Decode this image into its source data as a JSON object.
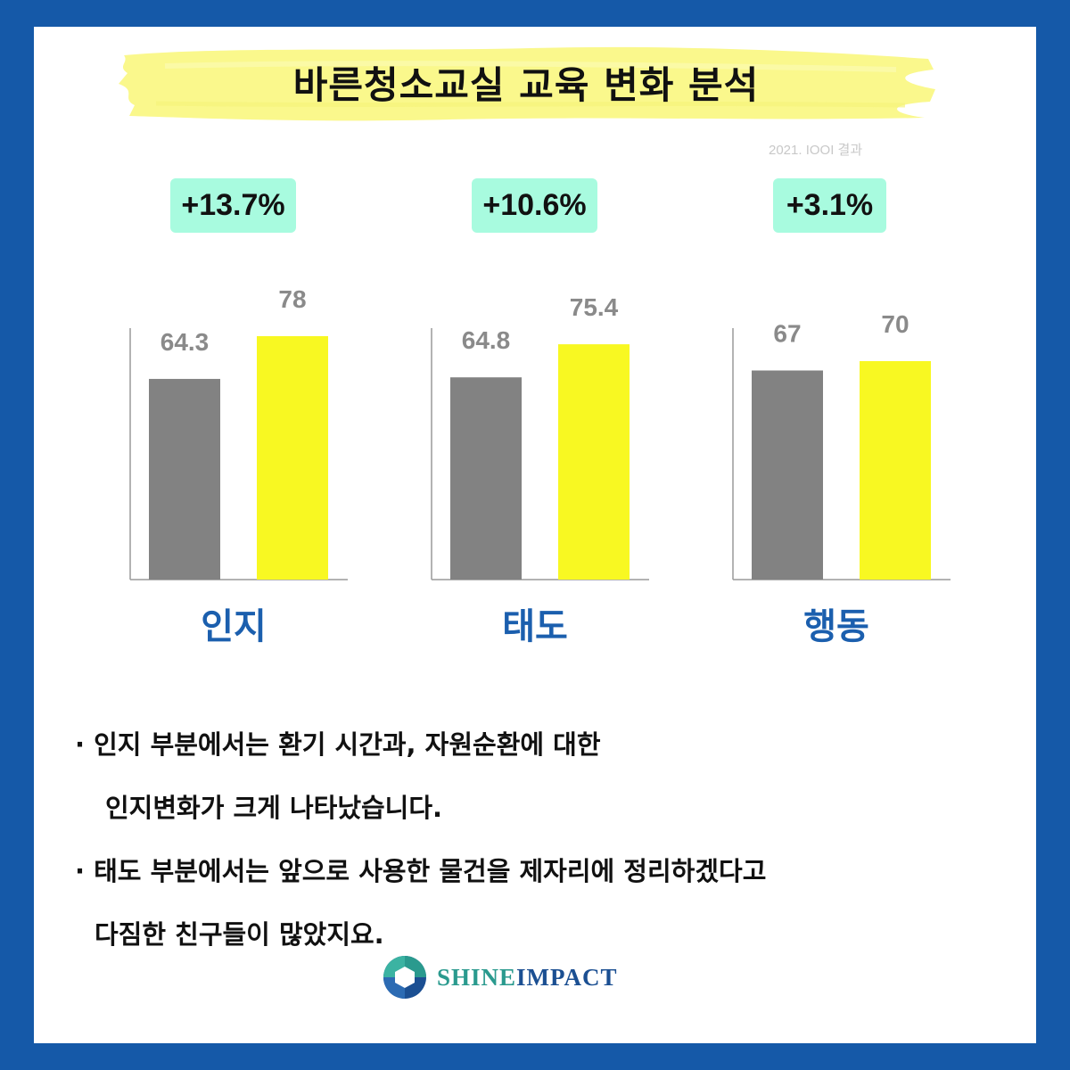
{
  "title": "바른청소교실 교육 변화 분석",
  "subtitle": "2021. IOOI 결과",
  "chart_data": {
    "type": "bar",
    "charts": [
      {
        "category": "인지",
        "badge": "+13.7%",
        "before": 64.3,
        "after": 78,
        "before_label": "64.3",
        "after_label": "78"
      },
      {
        "category": "태도",
        "badge": "+10.6%",
        "before": 64.8,
        "after": 75.4,
        "before_label": "64.8",
        "after_label": "75.4"
      },
      {
        "category": "행동",
        "badge": "+3.1%",
        "before": 67,
        "after": 70,
        "before_label": "67",
        "after_label": "70"
      }
    ],
    "colors": {
      "before": "#828282",
      "after": "#f8f822",
      "value_label": "#8a8a8a",
      "axis": "#9a9a9a"
    }
  },
  "notes": [
    "· 인지 부분에서는 환기 시간과, 자원순환에 대한",
    "인지변화가 크게 나타났습니다.",
    "· 태도 부분에서는 앞으로 사용한 물건을 제자리에 정리하겠다고",
    "다짐한 친구들이 많았지요."
  ],
  "brand": {
    "shine": "SHINE",
    "impact": "IMPACT"
  }
}
